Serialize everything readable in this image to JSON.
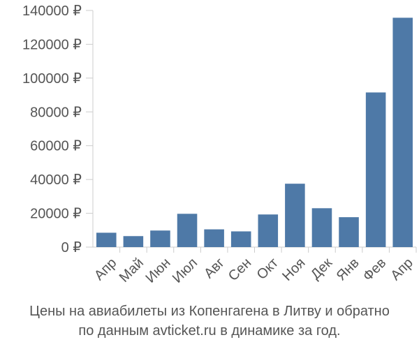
{
  "chart_data": {
    "type": "bar",
    "categories": [
      "Апр",
      "Май",
      "Июн",
      "Июл",
      "Авг",
      "Сен",
      "Окт",
      "Ноя",
      "Дек",
      "Янв",
      "Фев",
      "Апр"
    ],
    "values": [
      8500,
      6500,
      9800,
      19700,
      10500,
      9300,
      19300,
      37500,
      23000,
      17700,
      91500,
      135700
    ],
    "ylim": [
      0,
      140000
    ],
    "yticks": [
      0,
      20000,
      40000,
      60000,
      80000,
      100000,
      120000,
      140000
    ],
    "ytick_labels": [
      "0 ₽",
      "20000 ₽",
      "40000 ₽",
      "60000 ₽",
      "80000 ₽",
      "100000 ₽",
      "120000 ₽",
      "140000 ₽"
    ],
    "grid": false,
    "bar_color": "#4e79a7",
    "axis_color": "#cccccc"
  },
  "caption": {
    "line1": "Цены на авиабилеты из Копенгагена в Литву и обратно",
    "line2": "по данным avticket.ru в динамике за год."
  }
}
